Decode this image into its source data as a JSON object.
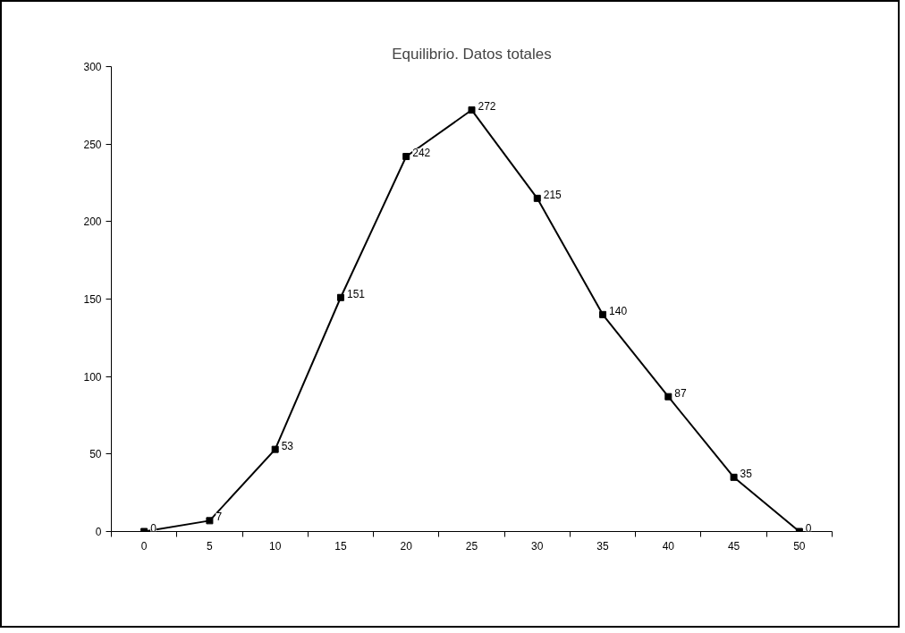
{
  "chart_data": {
    "type": "line",
    "title": "Equilibrio. Datos totales",
    "categories": [
      "0",
      "5",
      "10",
      "15",
      "20",
      "25",
      "30",
      "35",
      "40",
      "45",
      "50"
    ],
    "series": [
      {
        "color": "#000000",
        "values": [
          0,
          7,
          53,
          151,
          242,
          272,
          215,
          140,
          87,
          35,
          0
        ]
      }
    ],
    "ylim": [
      0,
      300
    ],
    "yticks": [
      0,
      50,
      100,
      150,
      200,
      250,
      300
    ],
    "grid": false,
    "legend": false,
    "marker": "square",
    "line_style": "solid",
    "data_labels": true
  }
}
